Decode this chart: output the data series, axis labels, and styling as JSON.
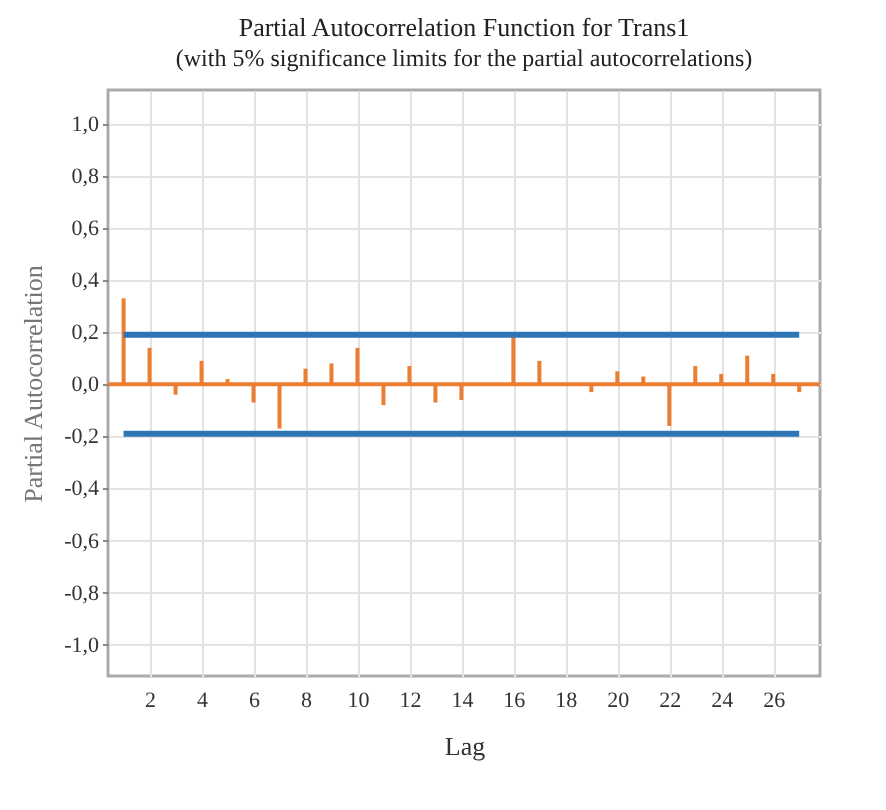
{
  "chart_data": {
    "type": "bar",
    "title": "Partial Autocorrelation Function for Trans1",
    "subtitle": "(with 5% significance limits for the partial autocorrelations)",
    "xlabel": "Lag",
    "ylabel": "Partial Autocorrelation",
    "x": [
      1,
      2,
      3,
      4,
      5,
      6,
      7,
      8,
      9,
      10,
      11,
      12,
      13,
      14,
      15,
      16,
      17,
      18,
      19,
      20,
      21,
      22,
      23,
      24,
      25,
      26,
      27
    ],
    "series": [
      {
        "color": "#ed7d31",
        "values": [
          0.33,
          0.14,
          -0.04,
          0.09,
          0.02,
          -0.07,
          -0.17,
          0.06,
          0.08,
          0.14,
          -0.08,
          0.07,
          -0.07,
          -0.06,
          null,
          0.2,
          0.09,
          null,
          -0.03,
          0.05,
          0.03,
          -0.16,
          0.07,
          0.04,
          0.11,
          0.04,
          -0.03
        ]
      },
      {
        "type": "line",
        "color": "#2e75b6",
        "values": [
          0.19,
          0.19,
          0.19,
          0.19,
          0.19,
          0.19,
          0.19,
          0.19,
          0.19,
          0.19,
          0.19,
          0.19,
          0.19,
          0.19,
          0.19,
          0.19,
          0.19,
          0.19,
          0.19,
          0.19,
          0.19,
          0.19,
          0.19,
          0.19,
          0.19,
          0.19,
          0.19
        ]
      },
      {
        "type": "line",
        "color": "#2e75b6",
        "values": [
          -0.19,
          -0.19,
          -0.19,
          -0.19,
          -0.19,
          -0.19,
          -0.19,
          -0.19,
          -0.19,
          -0.19,
          -0.19,
          -0.19,
          -0.19,
          -0.19,
          -0.19,
          -0.19,
          -0.19,
          -0.19,
          -0.19,
          -0.19,
          -0.19,
          -0.19,
          -0.19,
          -0.19,
          -0.19,
          -0.19,
          -0.19
        ]
      }
    ],
    "ref_lines": [
      {
        "axis": "y",
        "value": 0,
        "color": "#ed7d31"
      }
    ],
    "xlim": [
      0.4,
      27.8
    ],
    "xticks": [
      2,
      4,
      6,
      8,
      10,
      12,
      14,
      16,
      18,
      20,
      22,
      24,
      26
    ],
    "ylim": [
      -1.12,
      1.13
    ],
    "yticks": [
      {
        "value": -1,
        "label": "-1,0"
      },
      {
        "value": -0.8,
        "label": "-0,8"
      },
      {
        "value": -0.6,
        "label": "-0,6"
      },
      {
        "value": -0.4,
        "label": "-0,4"
      },
      {
        "value": -0.2,
        "label": "-0,2"
      },
      {
        "value": 0,
        "label": "0,0"
      },
      {
        "value": 0.2,
        "label": "0,2"
      },
      {
        "value": 0.4,
        "label": "0,4"
      },
      {
        "value": 0.6,
        "label": "0,6"
      },
      {
        "value": 0.8,
        "label": "0,8"
      },
      {
        "value": 1,
        "label": "1,0"
      }
    ],
    "grid": true
  }
}
